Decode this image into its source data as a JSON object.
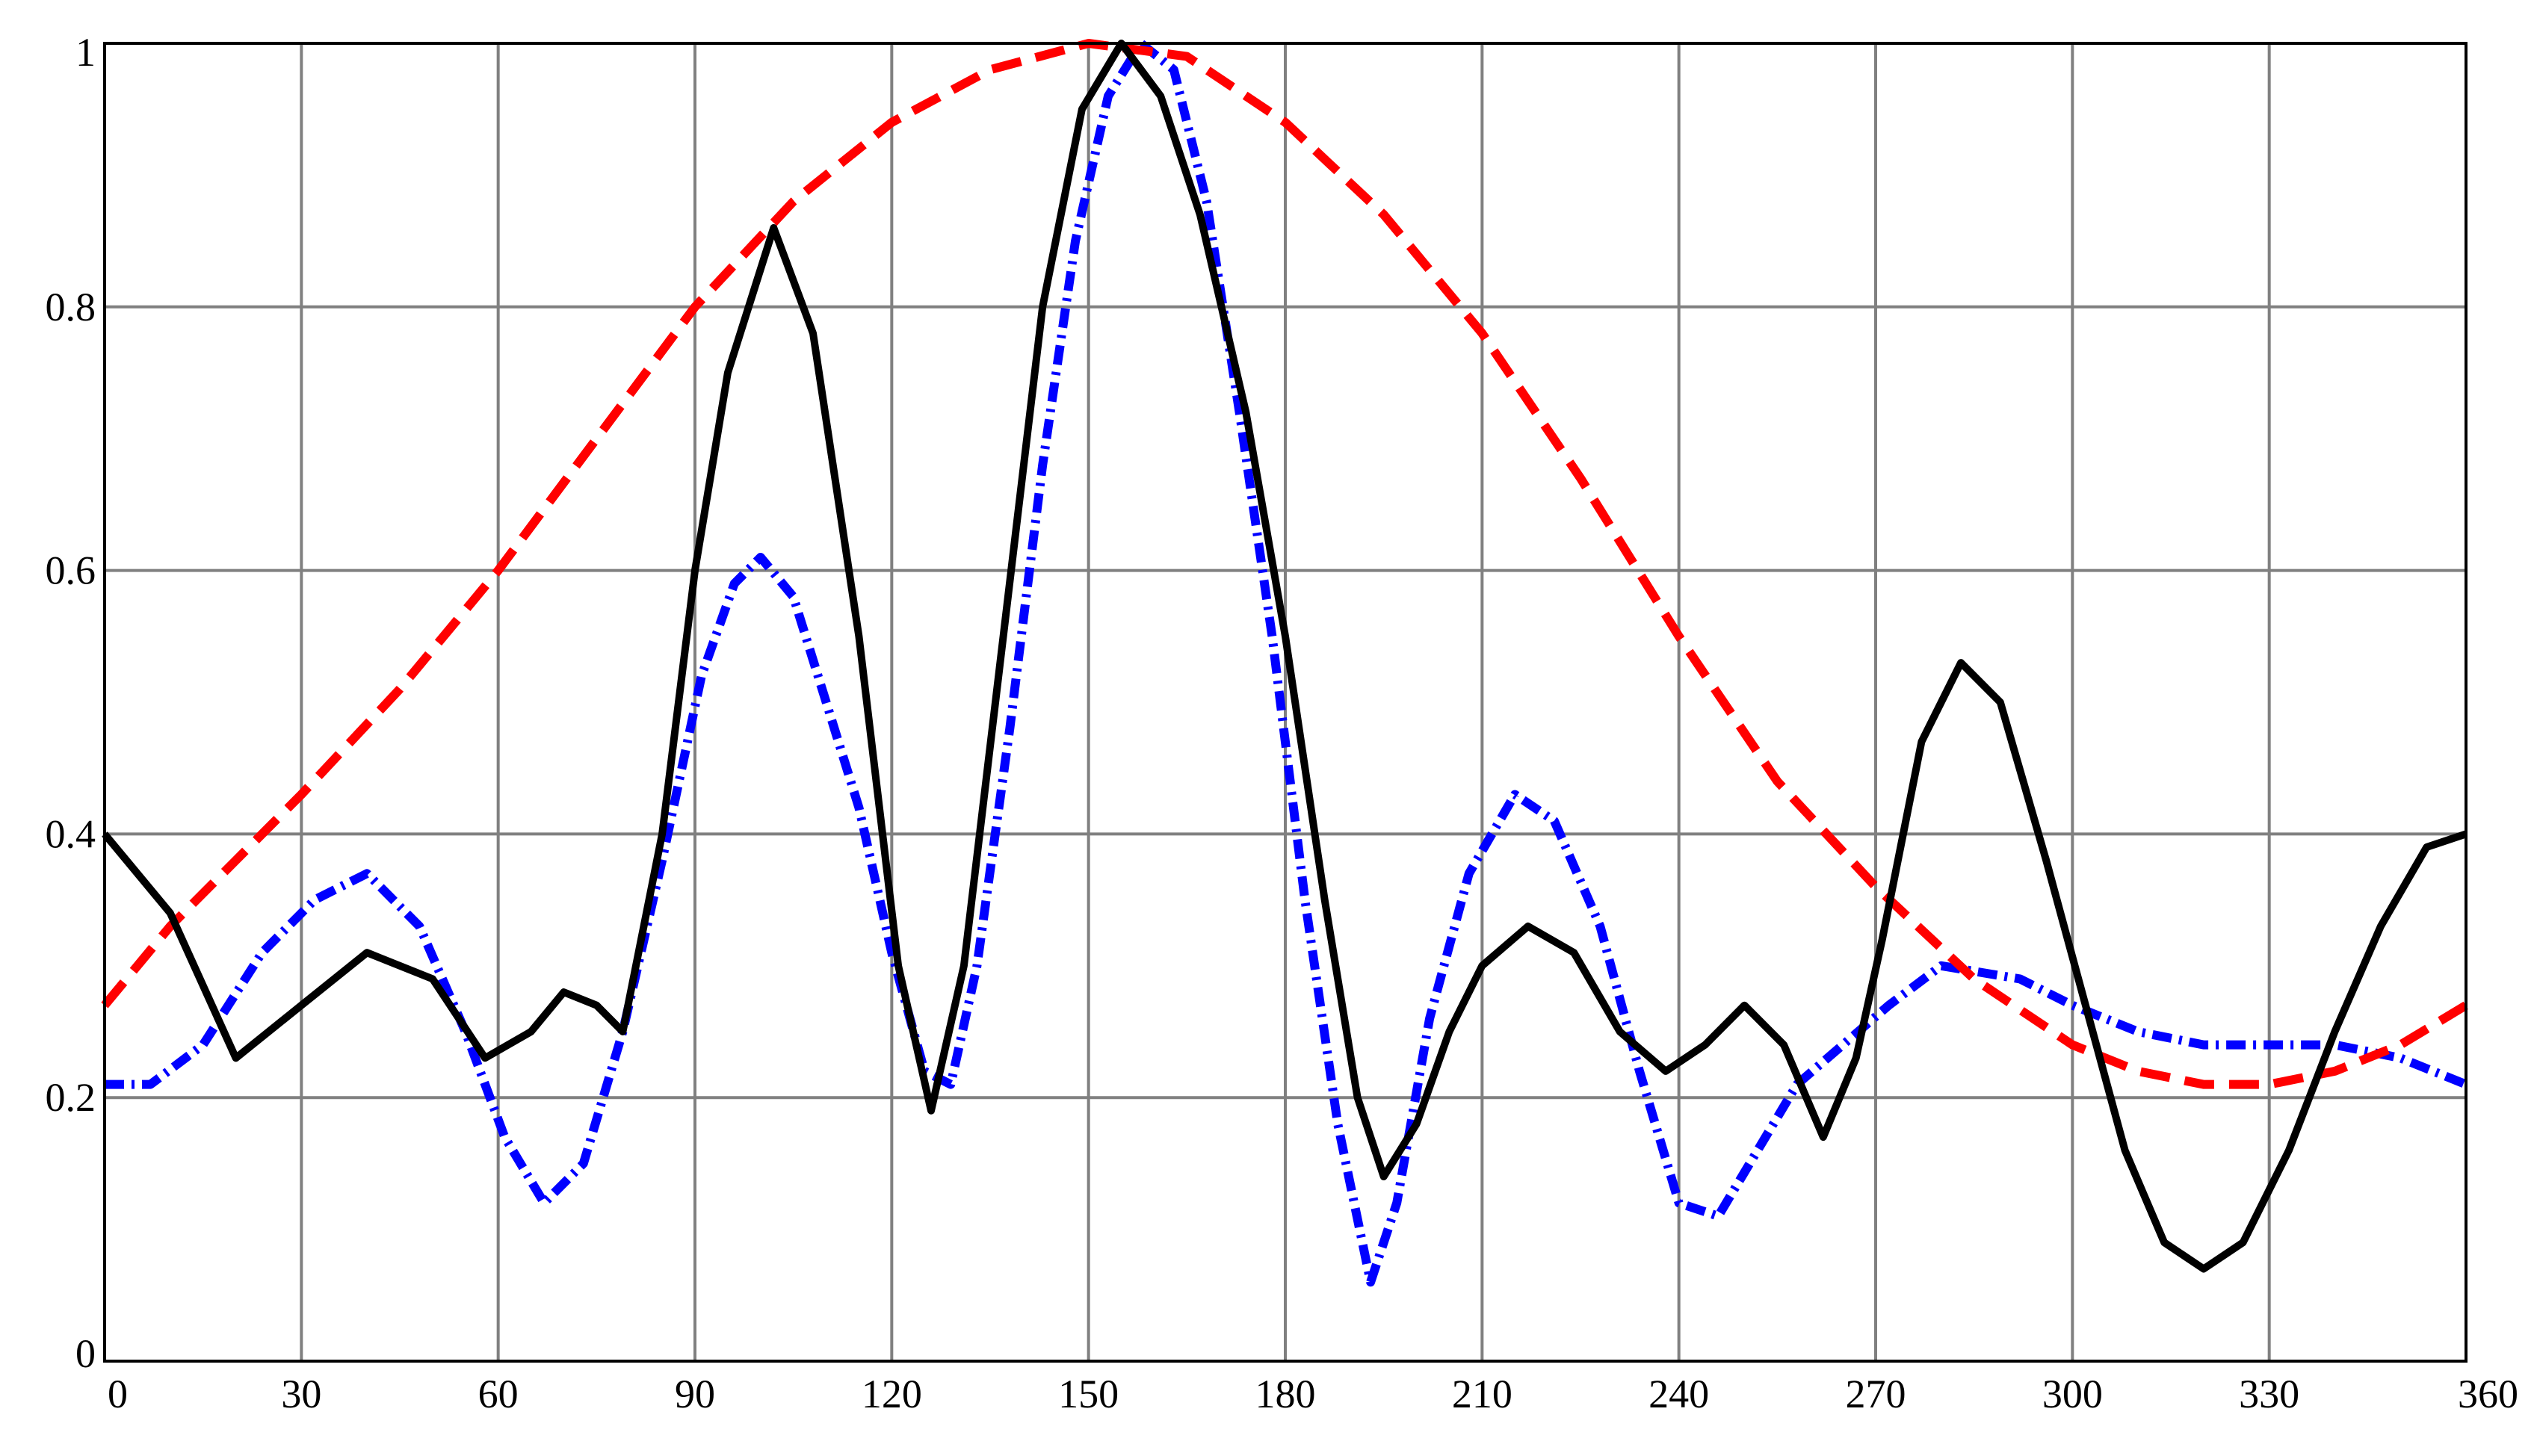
{
  "chart_data": {
    "type": "line",
    "title": "",
    "xlabel": "",
    "ylabel": "",
    "xlim": [
      0,
      360
    ],
    "ylim": [
      0,
      1
    ],
    "grid": true,
    "x_ticks": [
      "0",
      "30",
      "60",
      "90",
      "120",
      "150",
      "180",
      "210",
      "240",
      "270",
      "300",
      "330",
      "360"
    ],
    "y_ticks": [
      "0",
      "0.2",
      "0.4",
      "0.6",
      "0.8",
      "1"
    ],
    "colors": {
      "black": "#000000",
      "blue": "#0000ff",
      "red": "#ff0000",
      "grid": "#808080"
    },
    "series": [
      {
        "color": "#000000",
        "style": "solid",
        "points": [
          [
            0,
            0.4
          ],
          [
            10,
            0.34
          ],
          [
            20,
            0.23
          ],
          [
            30,
            0.27
          ],
          [
            40,
            0.31
          ],
          [
            50,
            0.29
          ],
          [
            58,
            0.23
          ],
          [
            65,
            0.25
          ],
          [
            70,
            0.28
          ],
          [
            75,
            0.27
          ],
          [
            79,
            0.25
          ],
          [
            85,
            0.4
          ],
          [
            90,
            0.6
          ],
          [
            95,
            0.75
          ],
          [
            102,
            0.86
          ],
          [
            108,
            0.78
          ],
          [
            115,
            0.55
          ],
          [
            121,
            0.3
          ],
          [
            126,
            0.19
          ],
          [
            131,
            0.3
          ],
          [
            137,
            0.55
          ],
          [
            143,
            0.8
          ],
          [
            149,
            0.95
          ],
          [
            155,
            1.0
          ],
          [
            161,
            0.96
          ],
          [
            167,
            0.87
          ],
          [
            174,
            0.72
          ],
          [
            180,
            0.55
          ],
          [
            186,
            0.35
          ],
          [
            191,
            0.2
          ],
          [
            195,
            0.14
          ],
          [
            200,
            0.18
          ],
          [
            205,
            0.25
          ],
          [
            210,
            0.3
          ],
          [
            217,
            0.33
          ],
          [
            224,
            0.31
          ],
          [
            231,
            0.25
          ],
          [
            238,
            0.22
          ],
          [
            244,
            0.24
          ],
          [
            250,
            0.27
          ],
          [
            256,
            0.24
          ],
          [
            262,
            0.17
          ],
          [
            267,
            0.23
          ],
          [
            271,
            0.32
          ],
          [
            277,
            0.47
          ],
          [
            283,
            0.53
          ],
          [
            289,
            0.5
          ],
          [
            296,
            0.38
          ],
          [
            302,
            0.27
          ],
          [
            308,
            0.16
          ],
          [
            314,
            0.09
          ],
          [
            320,
            0.07
          ],
          [
            326,
            0.09
          ],
          [
            333,
            0.16
          ],
          [
            340,
            0.25
          ],
          [
            347,
            0.33
          ],
          [
            354,
            0.39
          ],
          [
            360,
            0.4
          ]
        ]
      },
      {
        "color": "#0000ff",
        "style": "dashdot",
        "points": [
          [
            0,
            0.21
          ],
          [
            7,
            0.21
          ],
          [
            15,
            0.24
          ],
          [
            24,
            0.31
          ],
          [
            32,
            0.35
          ],
          [
            40,
            0.37
          ],
          [
            48,
            0.33
          ],
          [
            55,
            0.25
          ],
          [
            61,
            0.17
          ],
          [
            67,
            0.12
          ],
          [
            73,
            0.15
          ],
          [
            79,
            0.25
          ],
          [
            85,
            0.38
          ],
          [
            91,
            0.52
          ],
          [
            96,
            0.59
          ],
          [
            100,
            0.61
          ],
          [
            105,
            0.58
          ],
          [
            110,
            0.5
          ],
          [
            115,
            0.42
          ],
          [
            120,
            0.31
          ],
          [
            125,
            0.22
          ],
          [
            129,
            0.21
          ],
          [
            133,
            0.3
          ],
          [
            138,
            0.48
          ],
          [
            143,
            0.68
          ],
          [
            148,
            0.85
          ],
          [
            153,
            0.96
          ],
          [
            158,
            1.0
          ],
          [
            163,
            0.98
          ],
          [
            168,
            0.88
          ],
          [
            173,
            0.72
          ],
          [
            178,
            0.55
          ],
          [
            183,
            0.35
          ],
          [
            188,
            0.18
          ],
          [
            193,
            0.06
          ],
          [
            197,
            0.12
          ],
          [
            202,
            0.26
          ],
          [
            208,
            0.37
          ],
          [
            215,
            0.43
          ],
          [
            221,
            0.41
          ],
          [
            228,
            0.33
          ],
          [
            234,
            0.22
          ],
          [
            240,
            0.12
          ],
          [
            246,
            0.11
          ],
          [
            252,
            0.16
          ],
          [
            258,
            0.21
          ],
          [
            265,
            0.24
          ],
          [
            272,
            0.27
          ],
          [
            280,
            0.3
          ],
          [
            292,
            0.29
          ],
          [
            300,
            0.27
          ],
          [
            310,
            0.25
          ],
          [
            320,
            0.24
          ],
          [
            330,
            0.24
          ],
          [
            340,
            0.24
          ],
          [
            350,
            0.23
          ],
          [
            360,
            0.21
          ]
        ]
      },
      {
        "color": "#ff0000",
        "style": "dashed",
        "points": [
          [
            0,
            0.27
          ],
          [
            10,
            0.33
          ],
          [
            20,
            0.38
          ],
          [
            30,
            0.43
          ],
          [
            45,
            0.51
          ],
          [
            60,
            0.6
          ],
          [
            75,
            0.7
          ],
          [
            90,
            0.8
          ],
          [
            105,
            0.88
          ],
          [
            120,
            0.94
          ],
          [
            135,
            0.98
          ],
          [
            150,
            1.0
          ],
          [
            165,
            0.99
          ],
          [
            180,
            0.94
          ],
          [
            195,
            0.87
          ],
          [
            210,
            0.78
          ],
          [
            225,
            0.67
          ],
          [
            240,
            0.55
          ],
          [
            255,
            0.44
          ],
          [
            270,
            0.36
          ],
          [
            285,
            0.29
          ],
          [
            300,
            0.24
          ],
          [
            310,
            0.22
          ],
          [
            320,
            0.21
          ],
          [
            330,
            0.21
          ],
          [
            340,
            0.22
          ],
          [
            350,
            0.24
          ],
          [
            360,
            0.27
          ]
        ]
      }
    ]
  }
}
